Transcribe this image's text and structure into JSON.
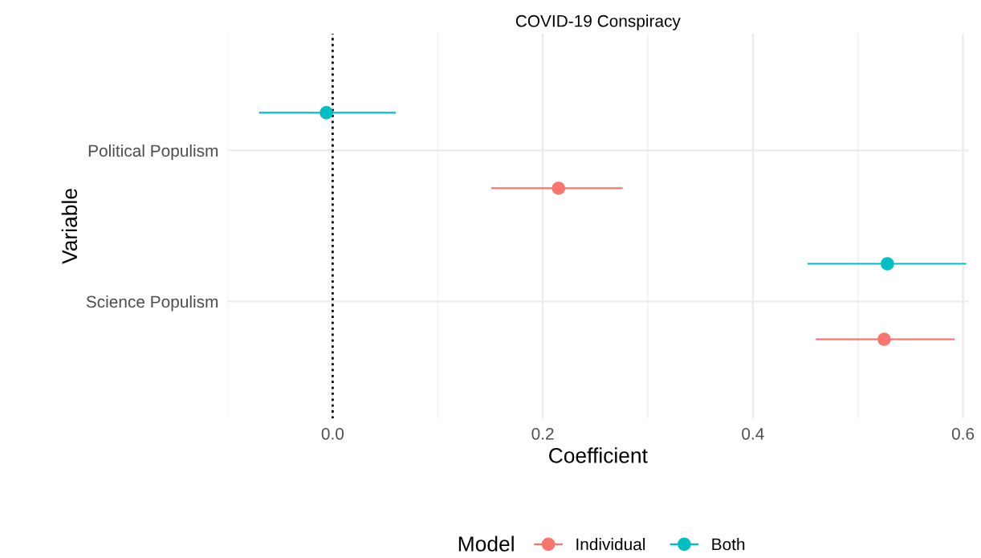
{
  "chart_data": {
    "type": "scatter",
    "title": "COVID-19 Conspiracy",
    "xlabel": "Coefficient",
    "ylabel": "Variable",
    "legend_title": "Model",
    "orientation": "horizontal",
    "categories": [
      "Political Populism",
      "Science Populism"
    ],
    "series": [
      {
        "name": "Individual",
        "color": "#f8766d",
        "values": [
          0.215,
          0.525
        ],
        "errors": [
          [
            0.151,
            0.276
          ],
          [
            0.46,
            0.592
          ]
        ]
      },
      {
        "name": "Both",
        "color": "#00bfc4",
        "values": [
          -0.006,
          0.528
        ],
        "errors": [
          [
            -0.07,
            0.06
          ],
          [
            0.452,
            0.603
          ]
        ]
      }
    ],
    "xlim": [
      -0.1,
      0.605
    ],
    "xticks": [
      {
        "value": 0,
        "label": "0.0"
      },
      0.2,
      0.4,
      0.6
    ],
    "ref_lines": [
      {
        "axis": "x",
        "value": 0,
        "line_style": "dotted",
        "color": "#000000"
      }
    ],
    "grid": true,
    "legend": "bottom",
    "marker": "circle"
  }
}
